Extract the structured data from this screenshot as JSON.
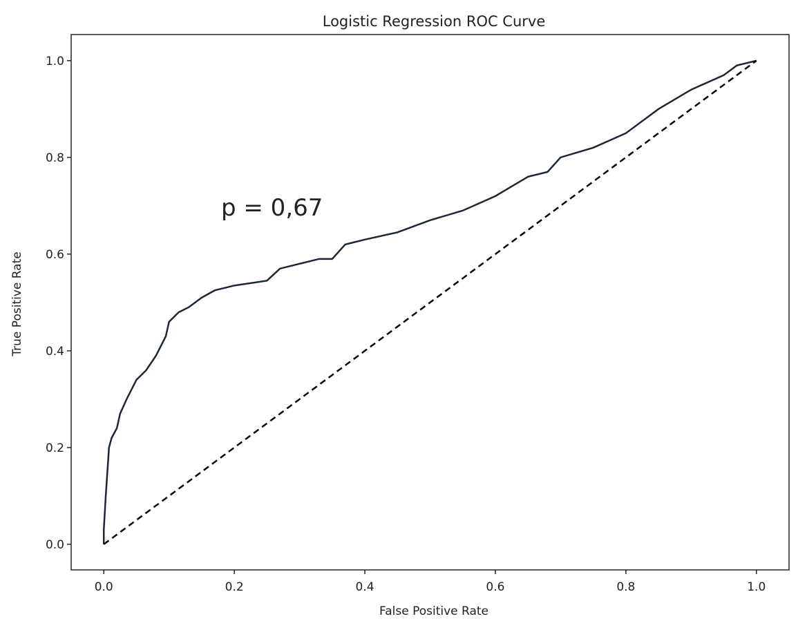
{
  "chart_data": {
    "type": "line",
    "title": "Logistic Regression ROC Curve",
    "xlabel": "False Positive Rate",
    "ylabel": "True Positive Rate",
    "annotations": [
      "p = 0,67"
    ],
    "series": [
      {
        "color": "#1c2636",
        "linestyle": "solid",
        "x": [
          0,
          0,
          0.003,
          0.005,
          0.008,
          0.012,
          0.02,
          0.025,
          0.035,
          0.05,
          0.065,
          0.08,
          0.095,
          0.1,
          0.115,
          0.13,
          0.15,
          0.17,
          0.2,
          0.25,
          0.27,
          0.3,
          0.33,
          0.35,
          0.37,
          0.4,
          0.45,
          0.5,
          0.55,
          0.6,
          0.65,
          0.68,
          0.7,
          0.75,
          0.8,
          0.85,
          0.9,
          0.95,
          0.97,
          1
        ],
        "values": [
          0,
          0.03,
          0.1,
          0.14,
          0.2,
          0.22,
          0.24,
          0.27,
          0.3,
          0.34,
          0.36,
          0.39,
          0.43,
          0.46,
          0.48,
          0.49,
          0.51,
          0.525,
          0.535,
          0.545,
          0.57,
          0.58,
          0.59,
          0.59,
          0.62,
          0.63,
          0.645,
          0.67,
          0.69,
          0.72,
          0.76,
          0.77,
          0.8,
          0.82,
          0.85,
          0.9,
          0.94,
          0.97,
          0.99,
          1
        ]
      },
      {
        "color": "#000000",
        "linestyle": "dashed",
        "x": [
          0,
          1
        ],
        "values": [
          0,
          1
        ]
      }
    ],
    "xlim": [
      -0.05,
      1.05
    ],
    "ylim": [
      -0.053,
      1.054
    ],
    "xticks": [
      {
        "value": 0,
        "label": "0.0"
      },
      0.2,
      0.4,
      0.6,
      0.8,
      {
        "value": 1,
        "label": "1.0"
      }
    ],
    "yticks": [
      {
        "value": 0,
        "label": "0.0"
      },
      0.2,
      0.4,
      0.6,
      0.8,
      {
        "value": 1,
        "label": "1.0"
      }
    ],
    "grid": false
  }
}
